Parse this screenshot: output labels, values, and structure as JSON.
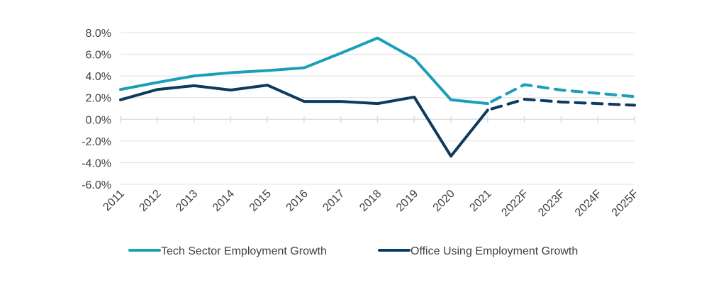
{
  "chart_data": {
    "type": "line",
    "title": "",
    "xlabel": "",
    "ylabel": "",
    "x": [
      "2011",
      "2012",
      "2013",
      "2014",
      "2015",
      "2016",
      "2017",
      "2018",
      "2019",
      "2020",
      "2021",
      "2022F",
      "2023F",
      "2024F",
      "2025F"
    ],
    "forecast_start_index": 10,
    "ylim": [
      -6.0,
      8.0
    ],
    "yticks": [
      8.0,
      6.0,
      4.0,
      2.0,
      0.0,
      -2.0,
      -4.0,
      -6.0
    ],
    "ytick_labels": [
      "8.0%",
      "6.0%",
      "4.0%",
      "2.0%",
      "0.0%",
      "-2.0%",
      "-4.0%",
      "-6.0%"
    ],
    "grid": true,
    "legend_position": "bottom",
    "series": [
      {
        "name": "Tech Sector Employment Growth",
        "color": "#1a9fb8",
        "values": [
          2.75,
          3.4,
          4.0,
          4.3,
          4.5,
          4.75,
          6.1,
          7.5,
          5.6,
          1.8,
          1.45,
          3.2,
          2.7,
          2.4,
          2.1
        ]
      },
      {
        "name": "Office Using Employment Growth",
        "color": "#0d3b5f",
        "values": [
          1.8,
          2.75,
          3.1,
          2.7,
          3.15,
          1.65,
          1.65,
          1.45,
          2.05,
          -3.4,
          0.85,
          1.85,
          1.6,
          1.45,
          1.3
        ]
      }
    ]
  }
}
